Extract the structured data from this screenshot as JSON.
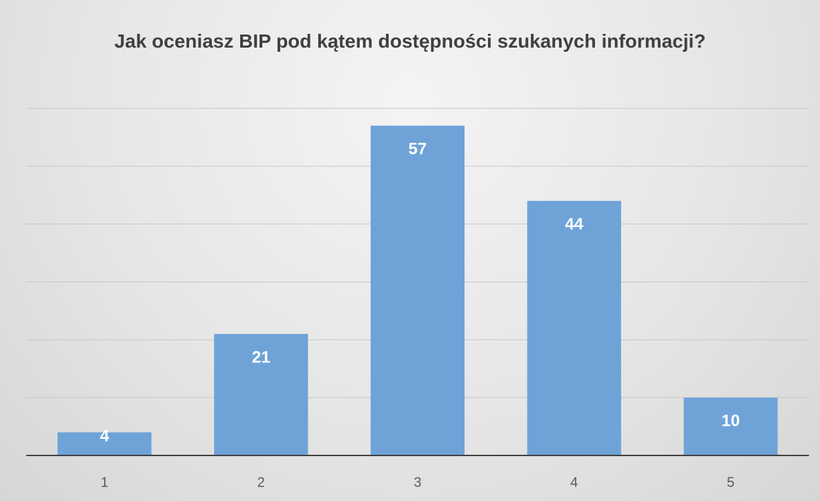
{
  "chart_data": {
    "type": "bar",
    "title": "Jak oceniasz BIP pod kątem dostępności szukanych informacji?",
    "categories": [
      "1",
      "2",
      "3",
      "4",
      "5"
    ],
    "values": [
      4,
      21,
      57,
      44,
      10
    ],
    "color": "#6fa3d8",
    "ylim": [
      0,
      60
    ],
    "yticks": [
      0,
      10,
      20,
      30,
      40,
      50,
      60
    ],
    "grid": true
  }
}
